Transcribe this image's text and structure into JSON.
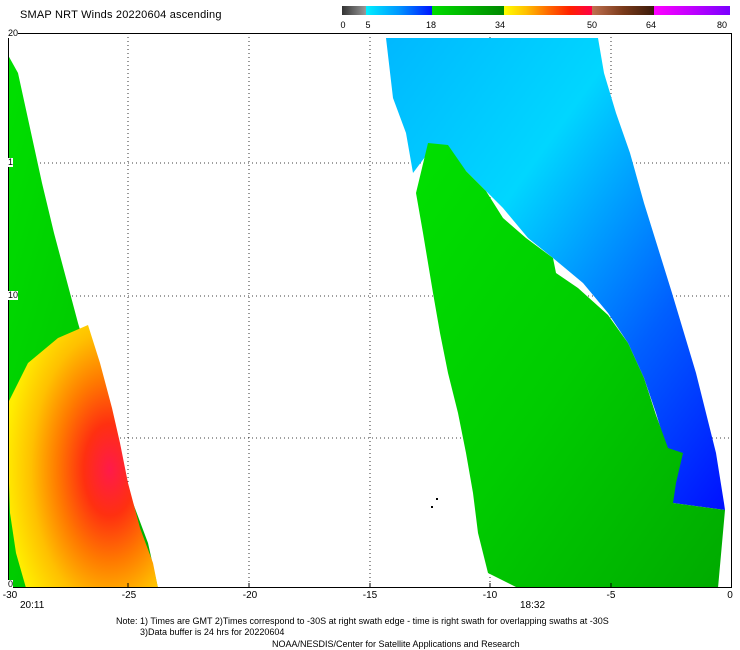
{
  "title": "SMAP NRT Winds 20220604 ascending",
  "colorscale": {
    "labels": [
      "0",
      "5",
      "18",
      "34",
      "50",
      "64",
      "80"
    ],
    "colors": {
      "gray": "#555555",
      "cyan": "#00e6ff",
      "blue": "#0014ff",
      "green": "#00dd00",
      "yellow": "#ffe600",
      "orange": "#ff6a00",
      "red": "#ff1a3a",
      "brown": "#7a3a1a",
      "magenta": "#ff00ff",
      "purple": "#7a00ff"
    }
  },
  "axes": {
    "x_ticks": [
      "-30",
      "-25",
      "-20",
      "-15",
      "-10",
      "-5",
      "0"
    ],
    "y_ticks": [
      "20",
      "1",
      "10",
      "",
      "0"
    ]
  },
  "swath_times": {
    "left": "20:11",
    "right": "18:32"
  },
  "notes": {
    "line1": "Note: 1) Times are GMT 2)Times correspond to -30S at right swath edge - time is right swath for overlapping swaths at -30S",
    "line2": "3)Data buffer is 24 hrs for 20220604",
    "line3": "NOAA/NESDIS/Center for Satellite Applications and Research"
  }
}
